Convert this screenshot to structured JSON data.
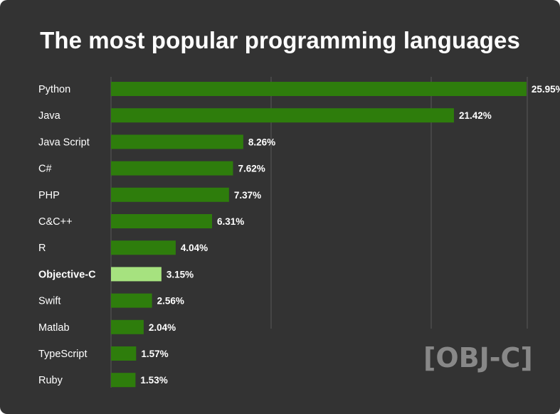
{
  "chart_data": {
    "type": "bar",
    "orientation": "horizontal",
    "title": "The most popular programming languages",
    "categories": [
      "Python",
      "Java",
      "Java Script",
      "C#",
      "PHP",
      "C&C++",
      "R",
      "Objective-C",
      "Swift",
      "Matlab",
      "TypeScript",
      "Ruby"
    ],
    "values": [
      25.95,
      21.42,
      8.26,
      7.62,
      7.37,
      6.31,
      4.04,
      3.15,
      2.56,
      2.04,
      1.57,
      1.53
    ],
    "value_labels": [
      "25.95%",
      "21.42%",
      "8.26%",
      "7.62%",
      "7.37%",
      "6.31%",
      "4.04%",
      "3.15%",
      "2.56%",
      "2.04%",
      "1.57%",
      "1.53%"
    ],
    "highlight": "Objective-C",
    "xlim": [
      0,
      26
    ],
    "grid": true,
    "legend": "none"
  },
  "colors": {
    "background": "#333333",
    "bar": "#2e7d0c",
    "highlight_bar": "#a6e27f",
    "text": "#ffffff",
    "grid": "#5a5a5a",
    "watermark": "#888888"
  },
  "watermark": {
    "text": "[OBJ-C]"
  }
}
